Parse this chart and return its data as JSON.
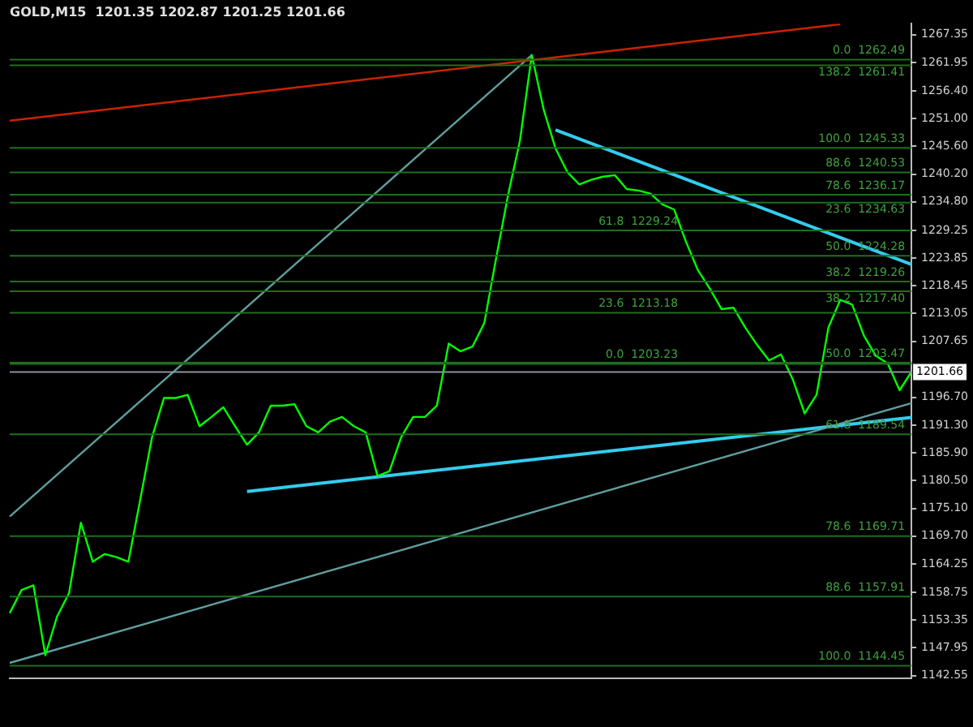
{
  "chart_data": {
    "type": "line",
    "title": "GOLD,M15  1201.35 1202.87 1201.25 1201.66",
    "categories": [
      null,
      null,
      null,
      null,
      null,
      null,
      null,
      null,
      null,
      null,
      null,
      null,
      null,
      null,
      null,
      null,
      null,
      null,
      null,
      null,
      null,
      null,
      null,
      null,
      null,
      null,
      null,
      null,
      null,
      null,
      null,
      null,
      null,
      null,
      null,
      null,
      null,
      null,
      null,
      null,
      null,
      null,
      null,
      null,
      null,
      null,
      null,
      null,
      null,
      null,
      null,
      null,
      null,
      null,
      null,
      null,
      null,
      null,
      null,
      null,
      null,
      null,
      null,
      null,
      null,
      null,
      null,
      null,
      null,
      null,
      null,
      null,
      null,
      null,
      null,
      null,
      null
    ],
    "ylim": [
      1142,
      1269.5
    ],
    "tick_labels": "y",
    "grid": false,
    "legend": false,
    "marker": "none",
    "line_style": "solid",
    "yticks": [
      {
        "value": 1267.35,
        "label": "1267.35"
      },
      {
        "value": 1261.95,
        "label": "1261.95"
      },
      {
        "value": 1256.4,
        "label": "1256.40"
      },
      {
        "value": 1251,
        "label": "1251.00"
      },
      {
        "value": 1245.6,
        "label": "1245.60"
      },
      {
        "value": 1240.2,
        "label": "1240.20"
      },
      {
        "value": 1234.8,
        "label": "1234.80"
      },
      {
        "value": 1229.25,
        "label": "1229.25"
      },
      {
        "value": 1223.85,
        "label": "1223.85"
      },
      {
        "value": 1218.45,
        "label": "1218.45"
      },
      {
        "value": 1213.05,
        "label": "1213.05"
      },
      {
        "value": 1207.65,
        "label": "1207.65"
      },
      {
        "value": 1196.7,
        "label": "1196.70"
      },
      {
        "value": 1191.3,
        "label": "1191.30"
      },
      {
        "value": 1185.9,
        "label": "1185.90"
      },
      {
        "value": 1180.5,
        "label": "1180.50"
      },
      {
        "value": 1175.1,
        "label": "1175.10"
      },
      {
        "value": 1169.7,
        "label": "1169.70"
      },
      {
        "value": 1164.25,
        "label": "1164.25"
      },
      {
        "value": 1158.75,
        "label": "1158.75"
      },
      {
        "value": 1153.35,
        "label": "1153.35"
      },
      {
        "value": 1147.95,
        "label": "1147.95"
      },
      {
        "value": 1142.55,
        "label": "1142.55"
      }
    ],
    "series": [
      {
        "color": "#00ff00",
        "values": [
          1154.7,
          1159.2,
          1160.1,
          1146.5,
          1154.1,
          1158.6,
          1172.3,
          1164.7,
          1166.2,
          1165.6,
          1164.7,
          1176.8,
          1189.0,
          1196.6,
          1196.6,
          1197.2,
          1191.1,
          1192.9,
          1194.8,
          1191.1,
          1187.5,
          1189.9,
          1195.1,
          1195.1,
          1195.4,
          1191.1,
          1189.9,
          1192.0,
          1192.9,
          1191.1,
          1189.9,
          1181.4,
          1182.3,
          1189.0,
          1192.9,
          1192.9,
          1195.1,
          1207.2,
          1205.7,
          1206.6,
          1211.2,
          1223.9,
          1236.1,
          1246.7,
          1263.4,
          1252.8,
          1245.2,
          1240.6,
          1238.2,
          1239.1,
          1239.7,
          1240.0,
          1237.3,
          1237.0,
          1236.4,
          1234.3,
          1233.3,
          1227.0,
          1221.5,
          1217.9,
          1213.9,
          1214.2,
          1210.3,
          1206.9,
          1203.9,
          1205.1,
          1200.2,
          1193.6,
          1197.2,
          1210.3,
          1215.7,
          1214.8,
          1208.7,
          1204.8,
          1203.3,
          1198.1,
          1201.7
        ]
      },
      {
        "color": "#cc2200",
        "values": [
          1250.6,
          null,
          null,
          null,
          null,
          null,
          null,
          null,
          null,
          null,
          null,
          null,
          null,
          null,
          null,
          null,
          null,
          null,
          null,
          null,
          null,
          null,
          null,
          null,
          null,
          null,
          null,
          null,
          null,
          null,
          null,
          null,
          null,
          null,
          null,
          null,
          null,
          null,
          null,
          null,
          null,
          null,
          null,
          null,
          null,
          null,
          null,
          null,
          null,
          null,
          null,
          null,
          null,
          null,
          null,
          null,
          null,
          null,
          null,
          null,
          null,
          null,
          null,
          null,
          null,
          null,
          null,
          null,
          null,
          null,
          1269.4,
          null,
          null,
          null,
          null,
          null,
          null
        ]
      },
      {
        "color": "#5f9f9f",
        "values": [
          1145.0,
          null,
          null,
          null,
          null,
          null,
          null,
          null,
          null,
          null,
          null,
          null,
          null,
          null,
          null,
          null,
          null,
          null,
          null,
          null,
          null,
          null,
          null,
          null,
          null,
          null,
          null,
          null,
          null,
          null,
          null,
          null,
          null,
          null,
          null,
          null,
          null,
          null,
          null,
          null,
          null,
          null,
          null,
          null,
          null,
          null,
          null,
          null,
          null,
          null,
          null,
          null,
          null,
          null,
          null,
          null,
          null,
          null,
          null,
          null,
          null,
          null,
          null,
          null,
          null,
          null,
          null,
          null,
          null,
          null,
          null,
          null,
          null,
          null,
          null,
          null,
          1195.6
        ]
      },
      {
        "color": "#5f9f9f",
        "values": [
          1173.5,
          null,
          null,
          null,
          null,
          null,
          null,
          null,
          null,
          null,
          null,
          null,
          null,
          null,
          null,
          null,
          null,
          null,
          null,
          null,
          null,
          null,
          null,
          null,
          null,
          null,
          null,
          null,
          null,
          null,
          null,
          null,
          null,
          null,
          null,
          null,
          null,
          null,
          null,
          null,
          null,
          null,
          null,
          null,
          1263.4,
          null,
          null,
          null,
          null,
          null,
          null,
          null,
          null,
          null,
          null,
          null,
          null,
          null,
          null,
          null,
          null,
          null,
          null,
          null,
          null,
          null,
          null,
          null,
          null,
          null,
          null,
          null,
          null,
          null,
          null,
          null,
          null
        ]
      },
      {
        "color": "#33ccee",
        "values": [
          null,
          null,
          null,
          null,
          null,
          null,
          null,
          null,
          null,
          null,
          null,
          null,
          null,
          null,
          null,
          null,
          null,
          null,
          null,
          null,
          1178.4,
          null,
          null,
          null,
          null,
          null,
          null,
          null,
          null,
          null,
          null,
          null,
          null,
          null,
          null,
          null,
          null,
          null,
          null,
          null,
          null,
          null,
          null,
          null,
          null,
          null,
          null,
          null,
          null,
          null,
          null,
          null,
          null,
          null,
          null,
          null,
          null,
          null,
          null,
          null,
          null,
          null,
          null,
          null,
          null,
          null,
          null,
          null,
          null,
          null,
          null,
          null,
          null,
          null,
          null,
          null,
          1192.8
        ]
      },
      {
        "color": "#33ccee",
        "values": [
          null,
          null,
          null,
          null,
          null,
          null,
          null,
          null,
          null,
          null,
          null,
          null,
          null,
          null,
          null,
          null,
          null,
          null,
          null,
          null,
          null,
          null,
          null,
          null,
          null,
          null,
          null,
          null,
          null,
          null,
          null,
          null,
          null,
          null,
          null,
          null,
          null,
          null,
          null,
          null,
          null,
          null,
          null,
          null,
          null,
          null,
          1248.8,
          null,
          null,
          null,
          null,
          null,
          null,
          null,
          null,
          null,
          null,
          null,
          null,
          null,
          null,
          null,
          null,
          null,
          null,
          null,
          null,
          null,
          null,
          null,
          null,
          null,
          null,
          null,
          null,
          null,
          1222.6
        ]
      }
    ],
    "ref_lines": [
      {
        "axis": "y",
        "value": 1201.66,
        "label": "1201.66",
        "color": "#9090a0"
      },
      {
        "axis": "y",
        "value": 1262.49,
        "label": "0.0  1262.49",
        "color": "#1f6f1f"
      },
      {
        "axis": "y",
        "value": 1234.63,
        "label": "23.6  1234.63",
        "color": "#1f6f1f"
      },
      {
        "axis": "y",
        "value": 1217.4,
        "label": "38.2  1217.40",
        "color": "#1f6f1f"
      },
      {
        "axis": "y",
        "value": 1203.47,
        "label": "50.0  1203.47",
        "color": "#1f6f1f"
      },
      {
        "axis": "y",
        "value": 1189.54,
        "label": "61.8  1189.54",
        "color": "#1f6f1f"
      },
      {
        "axis": "y",
        "value": 1169.71,
        "label": "78.6  1169.71",
        "color": "#1f6f1f"
      },
      {
        "axis": "y",
        "value": 1157.91,
        "label": "88.6  1157.91",
        "color": "#1f6f1f"
      },
      {
        "axis": "y",
        "value": 1144.45,
        "label": "100.0  1144.45",
        "color": "#1f6f1f"
      },
      {
        "axis": "y",
        "value": 1261.41,
        "label": "138.2  1261.41",
        "color": "#1f6f1f"
      },
      {
        "axis": "y",
        "value": 1245.33,
        "label": "100.0  1245.33",
        "color": "#1f6f1f"
      },
      {
        "axis": "y",
        "value": 1240.53,
        "label": "88.6  1240.53",
        "color": "#1f6f1f"
      },
      {
        "axis": "y",
        "value": 1236.17,
        "label": "78.6  1236.17",
        "color": "#1f6f1f"
      },
      {
        "axis": "y",
        "value": 1229.24,
        "label": "61.8  1229.24",
        "color": "#1f6f1f"
      },
      {
        "axis": "y",
        "value": 1224.28,
        "label": "50.0  1224.28",
        "color": "#1f6f1f"
      },
      {
        "axis": "y",
        "value": 1219.26,
        "label": "38.2  1219.26",
        "color": "#1f6f1f"
      },
      {
        "axis": "y",
        "value": 1213.18,
        "label": "23.6  1213.18",
        "color": "#1f6f1f"
      },
      {
        "axis": "y",
        "value": 1203.23,
        "label": "0.0  1203.23",
        "color": "#1f6f1f"
      }
    ]
  }
}
